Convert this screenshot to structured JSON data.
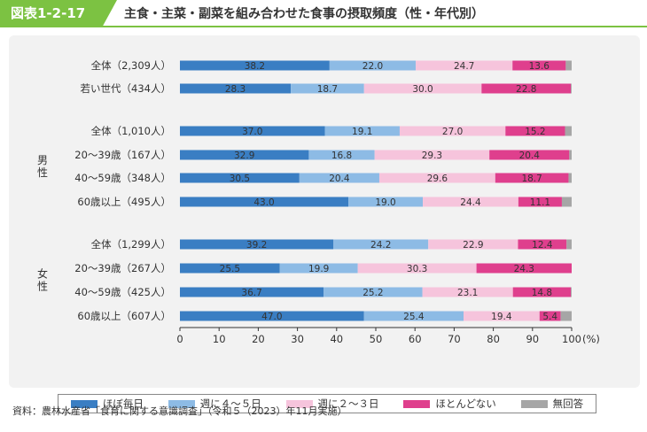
{
  "header": {
    "figure_label": "図表1-2-17",
    "title": "主食・主菜・副菜を組み合わせた食事の摂取頻度（性・年代別）"
  },
  "source": "資料：農林水産省「食育に関する意識調査」（令和５（2023）年11月実施）",
  "group_labels": {
    "male": "男性",
    "female": "女性"
  },
  "chart_data": {
    "type": "bar",
    "orientation": "horizontal",
    "stacked": true,
    "percent_stacked": true,
    "categories": [
      "全体（2,309人）",
      "若い世代（434人）",
      "全体（1,010人）",
      "20～39歳（167人）",
      "40～59歳（348人）",
      "60歳以上（495人）",
      "全体（1,299人）",
      "20～39歳（267人）",
      "40～59歳（425人）",
      "60歳以上（607人）"
    ],
    "groups": [
      {
        "label": "",
        "rows": [
          0,
          1
        ]
      },
      {
        "label": "男性",
        "rows": [
          2,
          3,
          4,
          5
        ]
      },
      {
        "label": "女性",
        "rows": [
          6,
          7,
          8,
          9
        ]
      }
    ],
    "series": [
      {
        "name": "ほぼ毎日",
        "color": "#3a7ec3",
        "values": [
          38.2,
          28.3,
          37.0,
          32.9,
          30.5,
          43.0,
          39.2,
          25.5,
          36.7,
          47.0
        ]
      },
      {
        "name": "週に４～５日",
        "color": "#8dbbe5",
        "values": [
          22.0,
          18.7,
          19.1,
          16.8,
          20.4,
          19.0,
          24.2,
          19.9,
          25.2,
          25.4
        ]
      },
      {
        "name": "週に２～３日",
        "color": "#f6c4dc",
        "values": [
          24.7,
          30.0,
          27.0,
          29.3,
          29.6,
          24.4,
          22.9,
          30.3,
          23.1,
          19.4
        ]
      },
      {
        "name": "ほとんどない",
        "color": "#df3f8d",
        "values": [
          13.6,
          22.8,
          15.2,
          20.4,
          18.7,
          11.1,
          12.4,
          24.3,
          14.8,
          5.4
        ]
      },
      {
        "name": "無回答",
        "color": "#a6a6a6",
        "values": [
          1.5,
          0.2,
          1.7,
          0.6,
          0.8,
          2.5,
          1.3,
          0.0,
          0.2,
          2.8
        ]
      }
    ],
    "data_labels": [
      [
        "38.2",
        "22.0",
        "24.7",
        "13.6"
      ],
      [
        "28.3",
        "18.7",
        "30.0",
        "22.8"
      ],
      [
        "37.0",
        "19.1",
        "27.0",
        "15.2"
      ],
      [
        "32.9",
        "16.8",
        "29.3",
        "20.4"
      ],
      [
        "30.5",
        "20.4",
        "29.6",
        "18.7"
      ],
      [
        "43.0",
        "19.0",
        "24.4",
        "11.1"
      ],
      [
        "39.2",
        "24.2",
        "22.9",
        "12.4"
      ],
      [
        "25.5",
        "19.9",
        "30.3",
        "24.3"
      ],
      [
        "36.7",
        "25.2",
        "23.1",
        "14.8"
      ],
      [
        "47.0",
        "25.4",
        "19.4",
        "5.4"
      ]
    ],
    "xlim": [
      0,
      100
    ],
    "x_ticks": [
      "0",
      "10",
      "20",
      "30",
      "40",
      "50",
      "60",
      "70",
      "80",
      "90",
      "100"
    ],
    "x_unit": "(%)",
    "legend_position": "bottom"
  }
}
